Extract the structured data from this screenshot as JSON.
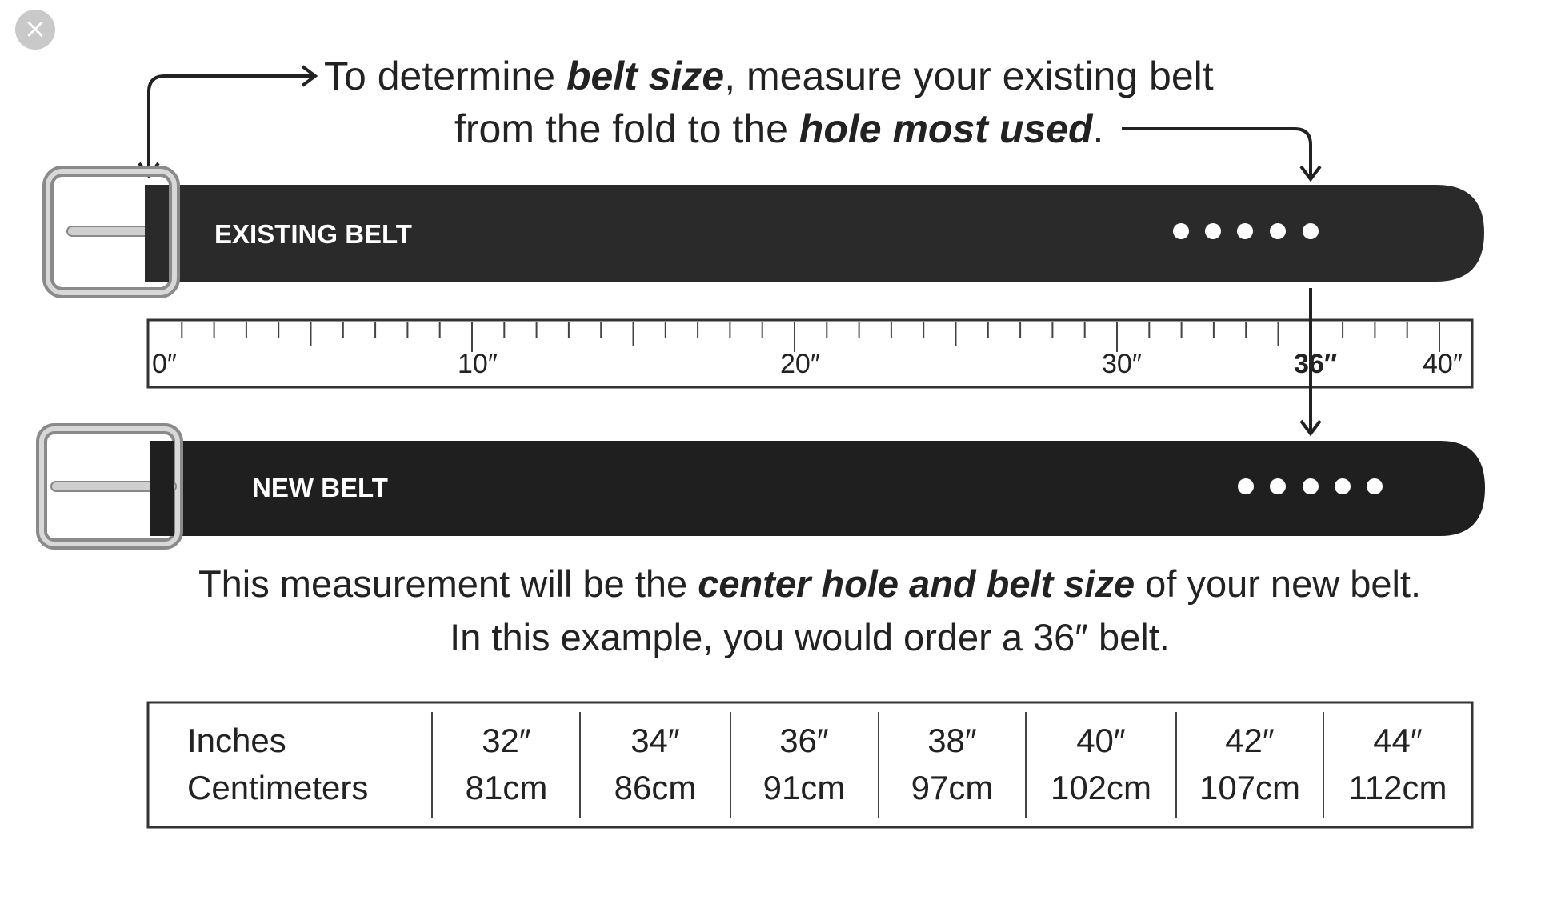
{
  "close_icon": "close-icon",
  "instructions": {
    "line1": [
      "To determine ",
      "belt size",
      ", measure your existing belt"
    ],
    "line2": [
      "from the fold to the ",
      "hole most used",
      "."
    ]
  },
  "existing_belt_label": "EXISTING BELT",
  "new_belt_label": "NEW BELT",
  "ruler": {
    "labels": [
      "0″",
      "10″",
      "20″",
      "30″",
      "36″",
      "40″"
    ],
    "marked_value_inches": 36,
    "max_inches": 40
  },
  "result": {
    "line1": [
      "This measurement will be the ",
      "center hole and belt size",
      " of your new belt."
    ],
    "line2": "In this example, you would order a 36″ belt."
  },
  "size_table": {
    "row_labels": [
      "Inches",
      "Centimeters"
    ],
    "columns": [
      {
        "inches": "32″",
        "cm": "81cm"
      },
      {
        "inches": "34″",
        "cm": "86cm"
      },
      {
        "inches": "36″",
        "cm": "91cm"
      },
      {
        "inches": "38″",
        "cm": "97cm"
      },
      {
        "inches": "40″",
        "cm": "102cm"
      },
      {
        "inches": "42″",
        "cm": "107cm"
      },
      {
        "inches": "44″",
        "cm": "112cm"
      }
    ]
  }
}
